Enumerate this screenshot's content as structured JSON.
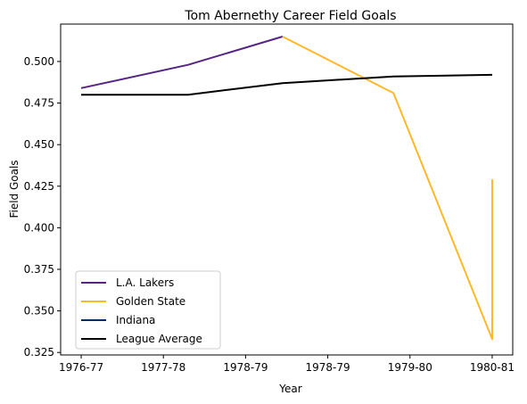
{
  "chart_data": {
    "type": "line",
    "title": "Tom Abernethy Career Field Goals",
    "xlabel": "Year",
    "ylabel": "Field Goals",
    "x_ticks": [
      "1976-77",
      "1977-78",
      "1978-79",
      "1978-79",
      "1979-80",
      "1980-81"
    ],
    "x_range": [
      -0.25,
      5.25
    ],
    "ylim": [
      0.3235,
      0.5225
    ],
    "y_ticks": [
      0.325,
      0.35,
      0.375,
      0.4,
      0.425,
      0.45,
      0.475,
      0.5
    ],
    "y_tick_labels": [
      "0.325",
      "0.350",
      "0.375",
      "0.400",
      "0.425",
      "0.450",
      "0.475",
      "0.500"
    ],
    "grid": false,
    "legend_position": "lower-left",
    "series": [
      {
        "name": "L.A. Lakers",
        "color": "#552583",
        "points": [
          [
            0,
            0.484
          ],
          [
            1.3,
            0.498
          ],
          [
            2.45,
            0.515
          ]
        ]
      },
      {
        "name": "Golden State",
        "color": "#FDB927",
        "points": [
          [
            2.45,
            0.515
          ],
          [
            3.8,
            0.481
          ],
          [
            5,
            0.333
          ],
          [
            5,
            0.429
          ]
        ]
      },
      {
        "name": "Indiana",
        "color": "#002D62",
        "points": []
      },
      {
        "name": "League Average",
        "color": "#000000",
        "points": [
          [
            0,
            0.48
          ],
          [
            1.3,
            0.48
          ],
          [
            2.45,
            0.487
          ],
          [
            3.8,
            0.491
          ],
          [
            5,
            0.492
          ]
        ]
      }
    ]
  }
}
